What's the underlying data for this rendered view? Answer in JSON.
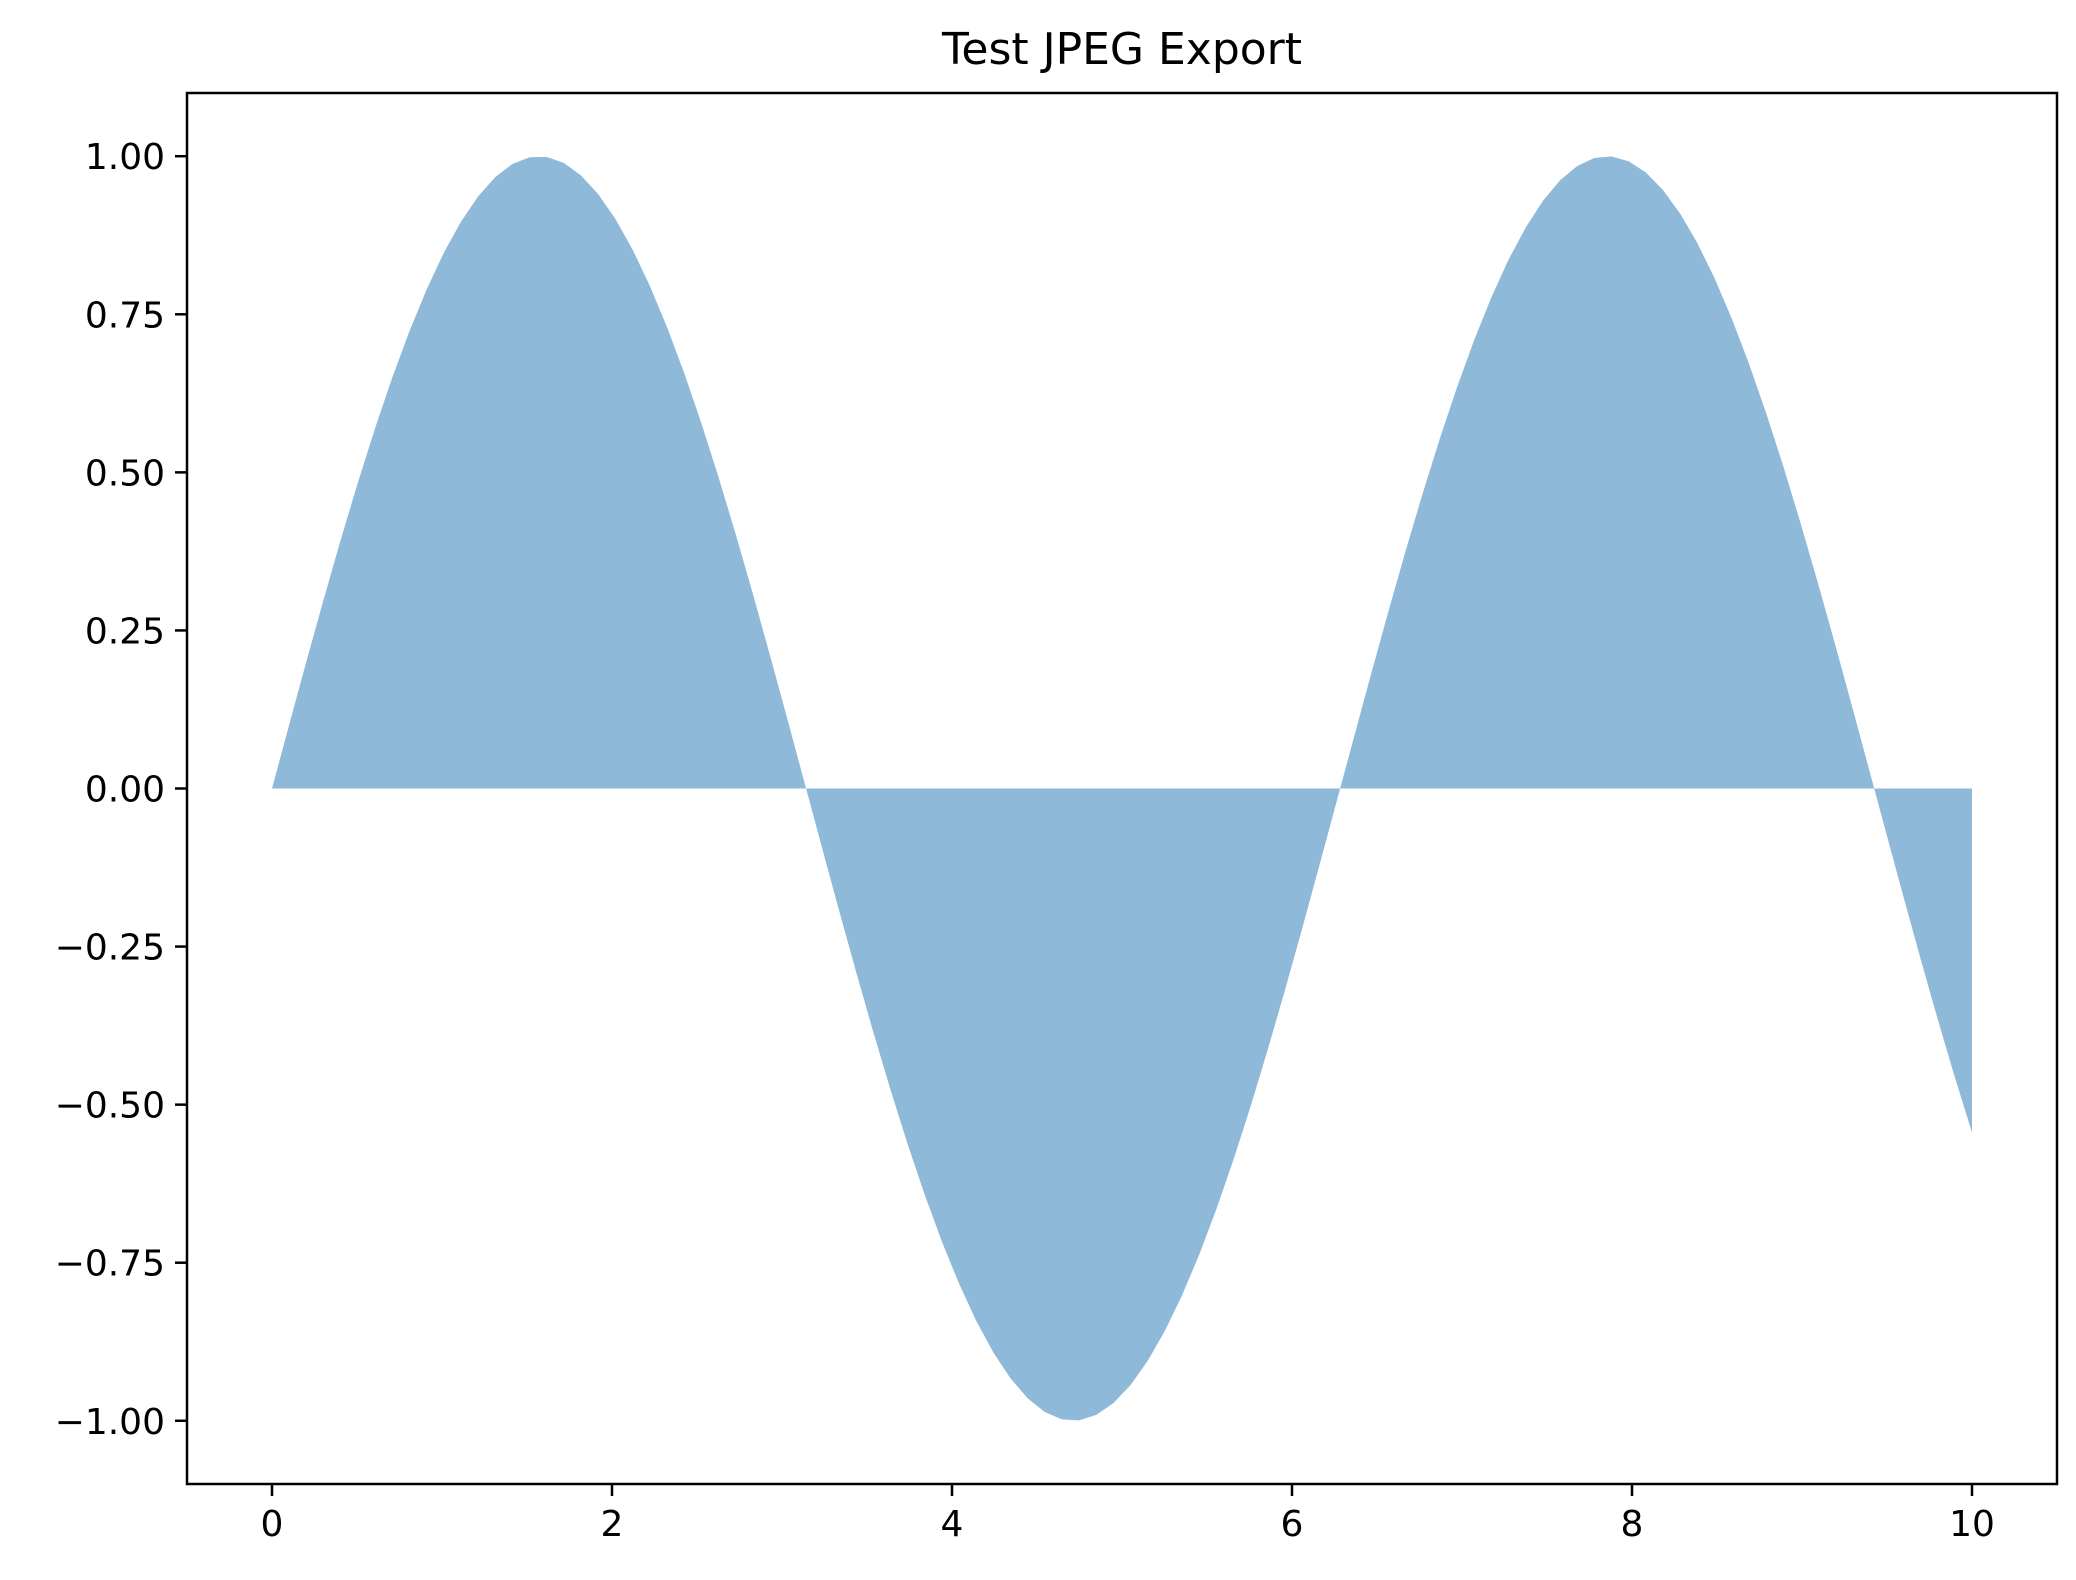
{
  "chart_data": {
    "type": "area",
    "title": "Test JPEG Export",
    "xlabel": "",
    "ylabel": "",
    "function": "sin(x)",
    "x_range": [
      0,
      10
    ],
    "baseline": 0,
    "xlim": [
      -0.5,
      10.5
    ],
    "ylim": [
      -1.1,
      1.1
    ],
    "xticks": [
      0,
      2,
      4,
      6,
      8,
      10
    ],
    "xtick_labels": [
      "0",
      "2",
      "4",
      "6",
      "8",
      "10"
    ],
    "yticks": [
      1.0,
      0.75,
      0.5,
      0.25,
      0.0,
      -0.25,
      -0.5,
      -0.75,
      -1.0
    ],
    "ytick_labels": [
      "1.00",
      "0.75",
      "0.50",
      "0.25",
      "0.00",
      "−0.25",
      "−0.50",
      "−0.75",
      "−1.00"
    ],
    "fill_color": "#8fb9d9",
    "grid": false,
    "legend": "none"
  }
}
